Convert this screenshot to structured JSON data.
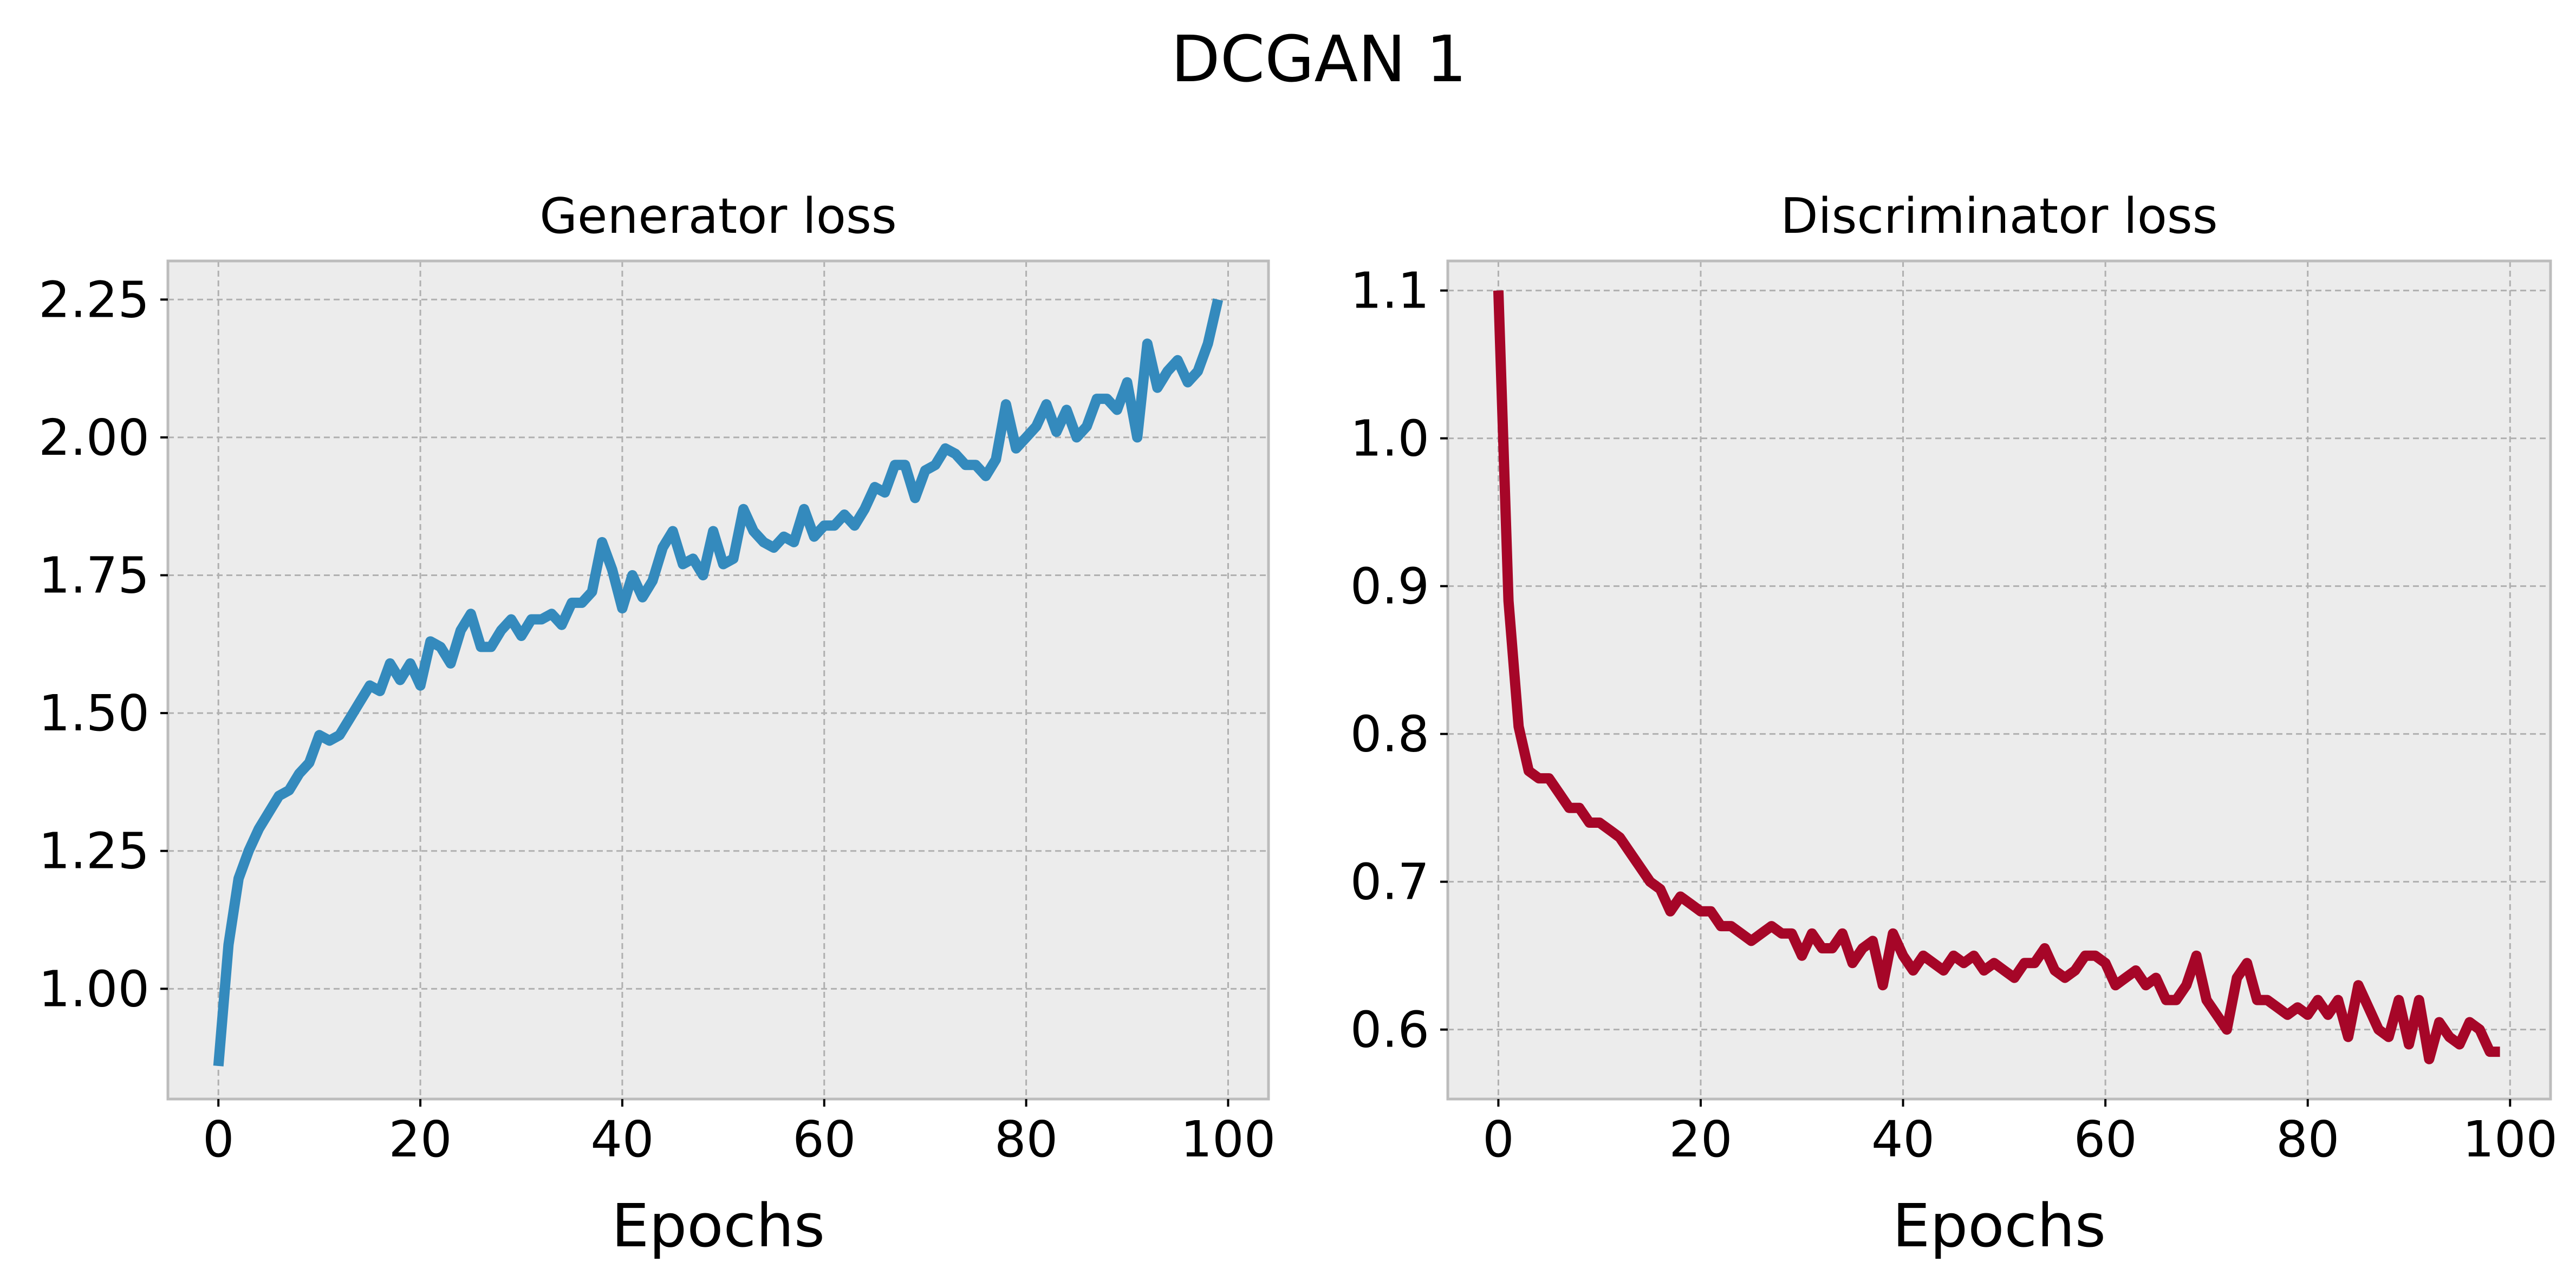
{
  "figure": {
    "title": "DCGAN 1"
  },
  "chart_data": [
    {
      "type": "line",
      "title": "Generator loss",
      "xlabel": "Epochs",
      "ylabel": "",
      "xlim": [
        -5,
        104
      ],
      "ylim": [
        0.8,
        2.32
      ],
      "xticks": [
        0,
        20,
        40,
        60,
        80,
        100
      ],
      "yticks": [
        1.0,
        1.25,
        1.5,
        1.75,
        2.0,
        2.25
      ],
      "ytick_labels": [
        "1.00",
        "1.25",
        "1.50",
        "1.75",
        "2.00",
        "2.25"
      ],
      "grid": true,
      "color": "#348ABD",
      "series": [
        {
          "x": [
            0,
            1,
            2,
            3,
            4,
            5,
            6,
            7,
            8,
            9,
            10,
            11,
            12,
            13,
            14,
            15,
            16,
            17,
            18,
            19,
            20,
            21,
            22,
            23,
            24,
            25,
            26,
            27,
            28,
            29,
            30,
            31,
            32,
            33,
            34,
            35,
            36,
            37,
            38,
            39,
            40,
            41,
            42,
            43,
            44,
            45,
            46,
            47,
            48,
            49,
            50,
            51,
            52,
            53,
            54,
            55,
            56,
            57,
            58,
            59,
            60,
            61,
            62,
            63,
            64,
            65,
            66,
            67,
            68,
            69,
            70,
            71,
            72,
            73,
            74,
            75,
            76,
            77,
            78,
            79,
            80,
            81,
            82,
            83,
            84,
            85,
            86,
            87,
            88,
            89,
            90,
            91,
            92,
            93,
            94,
            95,
            96,
            97,
            98,
            99
          ],
          "values": [
            0.86,
            1.08,
            1.2,
            1.25,
            1.29,
            1.32,
            1.35,
            1.36,
            1.39,
            1.41,
            1.46,
            1.45,
            1.46,
            1.49,
            1.52,
            1.55,
            1.54,
            1.59,
            1.56,
            1.59,
            1.55,
            1.63,
            1.62,
            1.59,
            1.65,
            1.68,
            1.62,
            1.62,
            1.65,
            1.67,
            1.64,
            1.67,
            1.67,
            1.68,
            1.66,
            1.7,
            1.7,
            1.72,
            1.81,
            1.76,
            1.69,
            1.75,
            1.71,
            1.74,
            1.8,
            1.83,
            1.77,
            1.78,
            1.75,
            1.83,
            1.77,
            1.78,
            1.87,
            1.83,
            1.81,
            1.8,
            1.82,
            1.81,
            1.87,
            1.82,
            1.84,
            1.84,
            1.86,
            1.84,
            1.87,
            1.91,
            1.9,
            1.95,
            1.95,
            1.89,
            1.94,
            1.95,
            1.98,
            1.97,
            1.95,
            1.95,
            1.93,
            1.96,
            2.06,
            1.98,
            2.0,
            2.02,
            2.06,
            2.01,
            2.05,
            2.0,
            2.02,
            2.07,
            2.07,
            2.05,
            2.1,
            2.0,
            2.17,
            2.09,
            2.12,
            2.14,
            2.1,
            2.12,
            2.17,
            2.25
          ]
        }
      ]
    },
    {
      "type": "line",
      "title": "Discriminator loss",
      "xlabel": "Epochs",
      "ylabel": "",
      "xlim": [
        -5,
        104
      ],
      "ylim": [
        0.553,
        1.12
      ],
      "xticks": [
        0,
        20,
        40,
        60,
        80,
        100
      ],
      "yticks": [
        0.6,
        0.7,
        0.8,
        0.9,
        1.0,
        1.1
      ],
      "ytick_labels": [
        "0.6",
        "0.7",
        "0.8",
        "0.9",
        "1.0",
        "1.1"
      ],
      "grid": true,
      "color": "#A60628",
      "series": [
        {
          "x": [
            0,
            1,
            2,
            3,
            4,
            5,
            6,
            7,
            8,
            9,
            10,
            11,
            12,
            13,
            14,
            15,
            16,
            17,
            18,
            19,
            20,
            21,
            22,
            23,
            24,
            25,
            26,
            27,
            28,
            29,
            30,
            31,
            32,
            33,
            34,
            35,
            36,
            37,
            38,
            39,
            40,
            41,
            42,
            43,
            44,
            45,
            46,
            47,
            48,
            49,
            50,
            51,
            52,
            53,
            54,
            55,
            56,
            57,
            58,
            59,
            60,
            61,
            62,
            63,
            64,
            65,
            66,
            67,
            68,
            69,
            70,
            71,
            72,
            73,
            74,
            75,
            76,
            77,
            78,
            79,
            80,
            81,
            82,
            83,
            84,
            85,
            86,
            87,
            88,
            89,
            90,
            91,
            92,
            93,
            94,
            95,
            96,
            97,
            98,
            99
          ],
          "values": [
            1.1,
            0.89,
            0.805,
            0.775,
            0.77,
            0.77,
            0.76,
            0.75,
            0.75,
            0.74,
            0.74,
            0.735,
            0.73,
            0.72,
            0.71,
            0.7,
            0.695,
            0.68,
            0.69,
            0.685,
            0.68,
            0.68,
            0.67,
            0.67,
            0.665,
            0.66,
            0.665,
            0.67,
            0.665,
            0.665,
            0.65,
            0.665,
            0.655,
            0.655,
            0.665,
            0.645,
            0.655,
            0.66,
            0.63,
            0.665,
            0.65,
            0.64,
            0.65,
            0.645,
            0.64,
            0.65,
            0.645,
            0.65,
            0.64,
            0.645,
            0.64,
            0.635,
            0.645,
            0.645,
            0.655,
            0.64,
            0.635,
            0.64,
            0.65,
            0.65,
            0.645,
            0.63,
            0.635,
            0.64,
            0.63,
            0.635,
            0.62,
            0.62,
            0.63,
            0.65,
            0.62,
            0.61,
            0.6,
            0.635,
            0.645,
            0.62,
            0.62,
            0.615,
            0.61,
            0.615,
            0.61,
            0.62,
            0.61,
            0.62,
            0.595,
            0.63,
            0.615,
            0.6,
            0.595,
            0.62,
            0.59,
            0.62,
            0.58,
            0.605,
            0.595,
            0.59,
            0.605,
            0.6,
            0.585,
            0.585
          ]
        }
      ]
    }
  ]
}
